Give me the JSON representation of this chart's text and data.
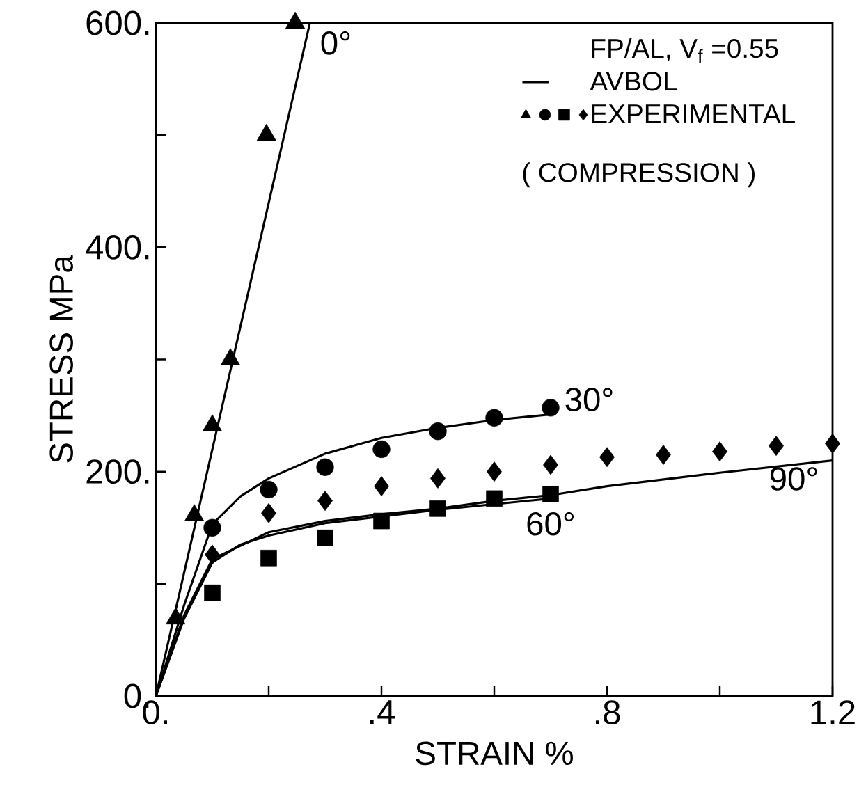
{
  "chart_data": {
    "type": "line",
    "xlabel": "STRAIN %",
    "ylabel": "STRESS MPa",
    "legend_title": "FP/AL, V$_{f}$ =0.55",
    "legend": "top right",
    "xlim": [
      0,
      1.2
    ],
    "ylim": [
      0,
      600
    ],
    "xticks": [
      {
        "value": 0,
        "label": "0."
      },
      {
        "value": 0.2,
        "label": null
      },
      {
        "value": 0.4,
        "label": ".4"
      },
      {
        "value": 0.6,
        "label": null
      },
      {
        "value": 0.8,
        "label": ".8"
      },
      {
        "value": 1.0,
        "label": null
      },
      {
        "value": 1.2,
        "label": "1.2"
      }
    ],
    "yticks": [
      {
        "value": 0,
        "label": "0."
      },
      {
        "value": 100,
        "label": null
      },
      {
        "value": 200,
        "label": "200."
      },
      {
        "value": 300,
        "label": null
      },
      {
        "value": 400,
        "label": "400."
      },
      {
        "value": 500,
        "label": null
      },
      {
        "value": 600,
        "label": "600."
      }
    ],
    "series": [
      {
        "name": "AVBOL",
        "color": "#000000",
        "marker": "none",
        "x": [
          0,
          0.273
        ],
        "values": [
          0,
          600
        ]
      },
      {
        "color": "#000000",
        "marker": "none",
        "x": [
          0,
          0.05,
          0.1,
          0.15,
          0.2,
          0.3,
          0.4,
          0.5,
          0.6,
          0.7
        ],
        "values": [
          0,
          81,
          153,
          178,
          194,
          216,
          230,
          239,
          246,
          251
        ]
      },
      {
        "color": "#000000",
        "marker": "none",
        "x": [
          0,
          0.05,
          0.1,
          0.15,
          0.2,
          0.3,
          0.4,
          0.5,
          0.6,
          0.7
        ],
        "values": [
          0,
          69,
          119,
          135,
          143,
          154,
          160,
          166,
          171,
          176
        ]
      },
      {
        "color": "#000000",
        "marker": "none",
        "x": [
          0,
          0.05,
          0.1,
          0.2,
          0.3,
          0.4,
          0.5,
          0.6,
          0.7,
          0.8,
          1.0,
          1.2
        ],
        "values": [
          0,
          72,
          122,
          146,
          156,
          162,
          167,
          174,
          179,
          187,
          199,
          210
        ]
      },
      {
        "type": "scatter",
        "color": "#000000",
        "marker": "triangle",
        "x": [
          0.035,
          0.068,
          0.1,
          0.132,
          0.196,
          0.247
        ],
        "values": [
          69,
          161,
          241,
          300,
          500,
          600
        ]
      },
      {
        "type": "scatter",
        "color": "#000000",
        "marker": "circle",
        "x": [
          0.1,
          0.2,
          0.3,
          0.4,
          0.5,
          0.6,
          0.7
        ],
        "values": [
          150,
          184,
          204,
          220,
          236,
          248,
          257
        ]
      },
      {
        "type": "scatter",
        "color": "#000000",
        "marker": "square",
        "x": [
          0.1,
          0.2,
          0.3,
          0.4,
          0.5,
          0.6,
          0.7
        ],
        "values": [
          92,
          123,
          141,
          156,
          167,
          176,
          180
        ]
      },
      {
        "name": "EXPERIMENTAL",
        "type": "scatter",
        "color": "#000000",
        "marker": "diamond",
        "x": [
          0.1,
          0.2,
          0.3,
          0.4,
          0.5,
          0.6,
          0.7,
          0.8,
          0.9,
          1.0,
          1.1,
          1.2
        ],
        "values": [
          126,
          163,
          174,
          187,
          194,
          200,
          206,
          213,
          215,
          218,
          223,
          225
        ]
      }
    ],
    "annotations": [
      {
        "text": "0°",
        "x": 0.273,
        "y": 600
      },
      {
        "text": "30°",
        "x": 0.7,
        "y": 251
      },
      {
        "text": "60°",
        "x": 0.7,
        "y": 176
      },
      {
        "text": "90°",
        "x": 1.2,
        "y": 210
      },
      "( COMPRESSION )"
    ]
  }
}
